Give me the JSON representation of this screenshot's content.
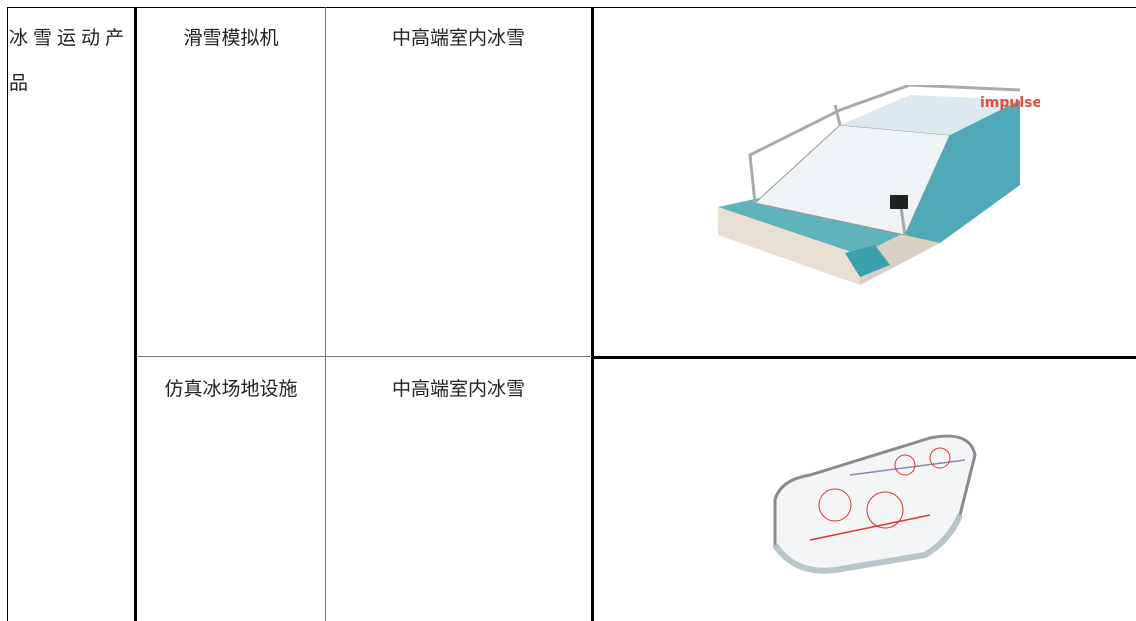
{
  "table": {
    "category": "冰雪运动产品",
    "rows": [
      {
        "product": "滑雪模拟机",
        "segment": "中高端室内冰雪",
        "image_text": "impulse"
      },
      {
        "product": "仿真冰场地设施",
        "segment": "中高端室内冰雪"
      }
    ]
  }
}
